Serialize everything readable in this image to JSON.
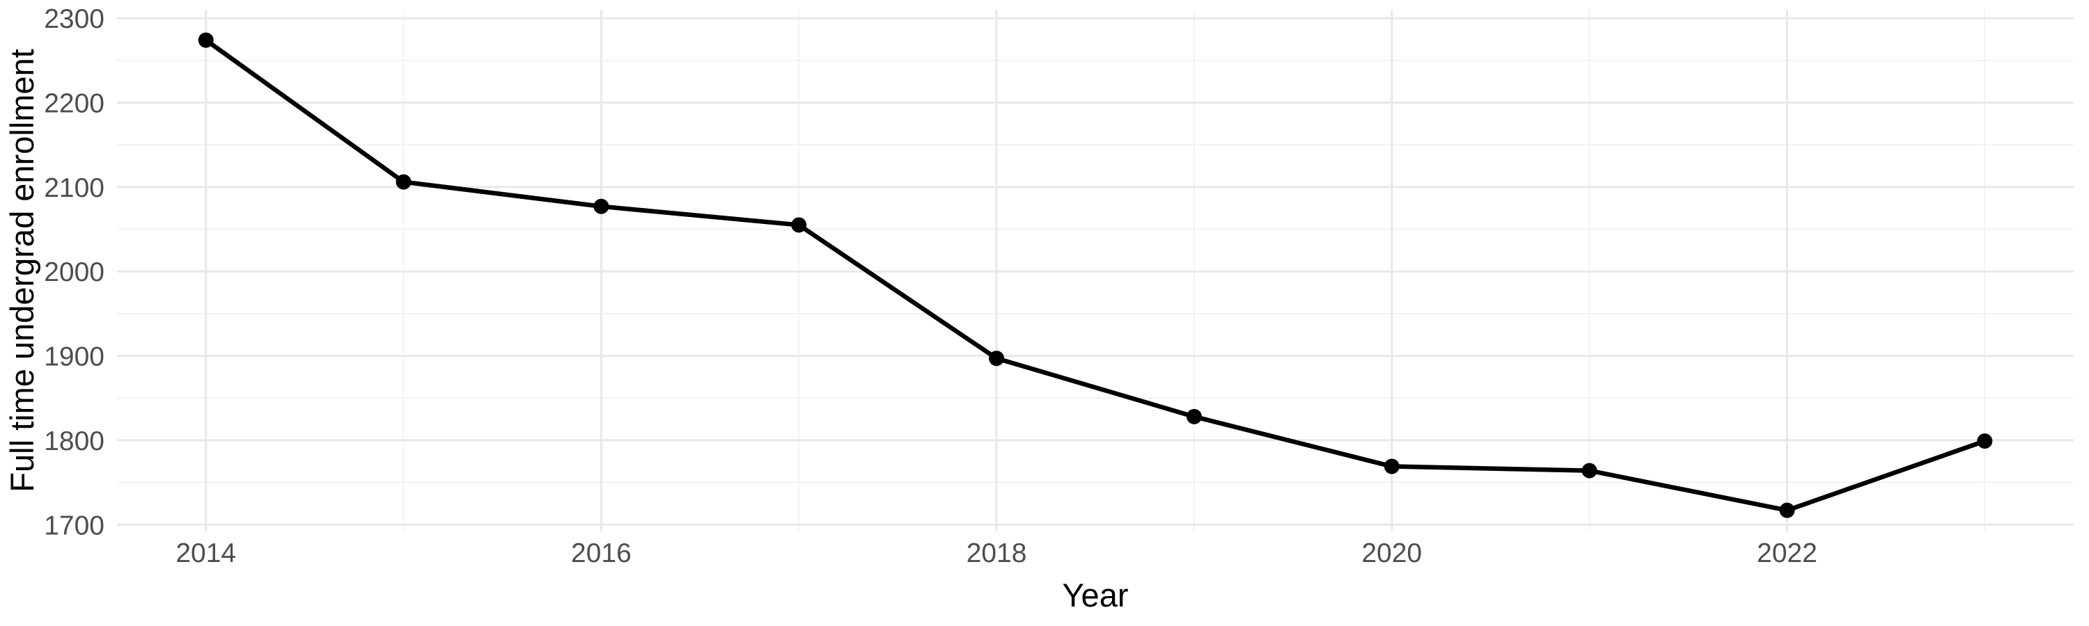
{
  "chart_data": {
    "type": "line",
    "title": "",
    "xlabel": "Year",
    "ylabel": "Full time undergrad enrollment",
    "series": [
      {
        "name": "Full time undergrad enrollment",
        "x": [
          2014,
          2015,
          2016,
          2017,
          2018,
          2019,
          2020,
          2021,
          2022,
          2023
        ],
        "values": [
          2274,
          2106,
          2077,
          2055,
          1897,
          1828,
          1769,
          1764,
          1717,
          1799
        ]
      }
    ],
    "xlim": [
      2013.55,
      2023.45
    ],
    "ylim": [
      1692,
      2310
    ],
    "x_major_ticks": [
      2014,
      2016,
      2018,
      2020,
      2022
    ],
    "x_minor_ticks": [
      2015,
      2017,
      2019,
      2021,
      2023
    ],
    "y_major_ticks": [
      1700,
      1800,
      1900,
      2000,
      2100,
      2200,
      2300
    ],
    "y_minor_ticks": [
      1750,
      1850,
      1950,
      2050,
      2150,
      2250
    ],
    "grid": "major+minor",
    "legend": false
  },
  "colors": {
    "line": "#000000",
    "point": "#000000",
    "grid_major": "#e8e8e8",
    "grid_minor": "#f0f0f0",
    "tick_label": "#4d4d4d",
    "axis_title": "#000000",
    "background": "#ffffff"
  }
}
